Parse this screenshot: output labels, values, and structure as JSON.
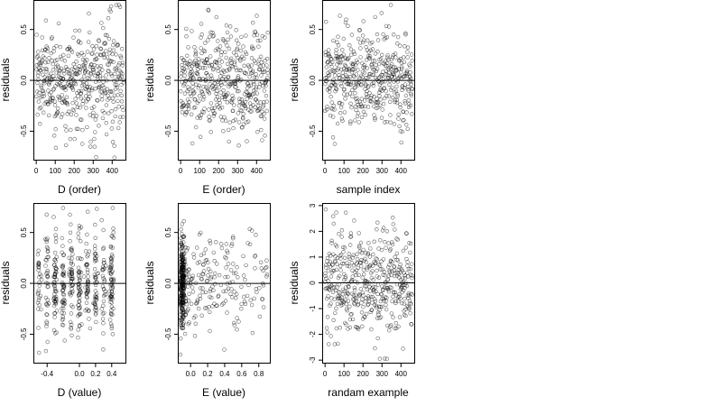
{
  "chart_data": [
    {
      "type": "scatter",
      "xlabel": "D (order)",
      "ylabel": "residuals",
      "x_ticks": [
        0,
        100,
        200,
        300,
        400
      ],
      "y_ticks": [
        -0.5,
        0.0,
        0.5
      ],
      "y_tick_labels": [
        "-0.5",
        "0.0",
        "0.5"
      ],
      "xlim": [
        -15,
        470
      ],
      "ylim": [
        -0.78,
        0.79
      ],
      "reference_line_y": 0,
      "n_points": 460,
      "pattern": "order_D",
      "marker": "open-circle",
      "marker_color": "#000000",
      "x_min": 0,
      "x_max": 460
    },
    {
      "type": "scatter",
      "xlabel": "E (order)",
      "ylabel": "residuals",
      "x_ticks": [
        0,
        100,
        200,
        300,
        400
      ],
      "y_ticks": [
        -0.5,
        0.0,
        0.5
      ],
      "y_tick_labels": [
        "-0.5",
        "0.0",
        "0.5"
      ],
      "xlim": [
        -15,
        470
      ],
      "ylim": [
        -0.78,
        0.79
      ],
      "reference_line_y": 0,
      "n_points": 460,
      "pattern": "order_E",
      "marker": "open-circle",
      "marker_color": "#000000",
      "x_min": 0,
      "x_max": 460
    },
    {
      "type": "scatter",
      "xlabel": "sample index",
      "ylabel": "residuals",
      "x_ticks": [
        0,
        100,
        200,
        300,
        400
      ],
      "y_ticks": [
        -0.5,
        0.0,
        0.5
      ],
      "y_tick_labels": [
        "-0.5",
        "0.0",
        "0.5"
      ],
      "xlim": [
        -15,
        470
      ],
      "ylim": [
        -0.78,
        0.79
      ],
      "reference_line_y": 0,
      "n_points": 460,
      "pattern": "index",
      "marker": "open-circle",
      "marker_color": "#000000",
      "x_min": 0,
      "x_max": 460
    },
    {
      "type": "scatter",
      "xlabel": "D (value)",
      "ylabel": "residuals",
      "x_ticks": [
        -0.4,
        0.0,
        0.2,
        0.4
      ],
      "x_tick_labels": [
        "-0.4",
        "0.0",
        "0.2",
        "0.4"
      ],
      "y_ticks": [
        -0.5,
        0.0,
        0.5
      ],
      "y_tick_labels": [
        "-0.5",
        "0.0",
        "0.5"
      ],
      "xlim": [
        -0.57,
        0.57
      ],
      "ylim": [
        -0.78,
        0.79
      ],
      "reference_line_y": 0,
      "n_points": 460,
      "pattern": "value_D",
      "marker": "open-circle",
      "marker_color": "#000000",
      "x_clusters": [
        -0.5,
        -0.4,
        -0.3,
        -0.2,
        -0.1,
        0.0,
        0.1,
        0.2,
        0.3,
        0.4
      ]
    },
    {
      "type": "scatter",
      "xlabel": "E (value)",
      "ylabel": "residuals",
      "x_ticks": [
        0.0,
        0.2,
        0.4,
        0.6,
        0.8
      ],
      "x_tick_labels": [
        "0.0",
        "0.2",
        "0.4",
        "0.6",
        "0.8"
      ],
      "y_ticks": [
        -0.5,
        0.0,
        0.5
      ],
      "y_tick_labels": [
        "-0.5",
        "0.0",
        "0.5"
      ],
      "xlim": [
        -0.15,
        0.93
      ],
      "ylim": [
        -0.78,
        0.79
      ],
      "reference_line_y": 0,
      "n_points": 460,
      "pattern": "value_E",
      "marker": "open-circle",
      "marker_color": "#000000",
      "x_dense_range": [
        -0.12,
        -0.08
      ]
    },
    {
      "type": "scatter",
      "xlabel": "randam example",
      "ylabel": "residuals",
      "x_ticks": [
        0,
        100,
        200,
        300,
        400
      ],
      "y_ticks": [
        -3,
        -2,
        -1,
        0,
        1,
        2,
        3
      ],
      "y_tick_labels": [
        "-3",
        "-2",
        "-1",
        "0",
        "1",
        "2",
        "3"
      ],
      "xlim": [
        -15,
        470
      ],
      "ylim": [
        -3.1,
        3.1
      ],
      "reference_line_y": 0,
      "n_points": 460,
      "pattern": "normal",
      "marker": "open-circle",
      "marker_color": "#000000",
      "x_min": 0,
      "x_max": 460
    }
  ]
}
